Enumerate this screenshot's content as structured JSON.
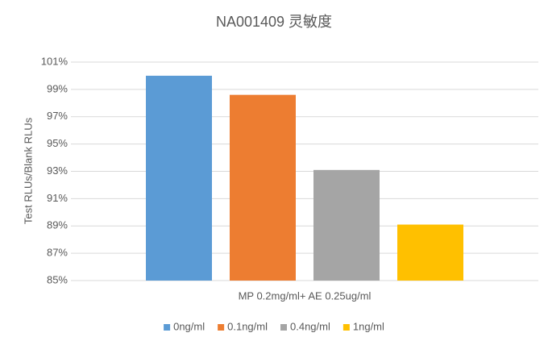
{
  "chart_data": {
    "type": "bar",
    "title": "NA001409 灵敏度",
    "y_label": "Test RLUs/Blank RLUs",
    "categories": [
      "MP 0.2mg/ml+ AE 0.25ug/ml"
    ],
    "series": [
      {
        "name": "0ng/ml",
        "color": "#5b9bd5",
        "values": [
          100
        ]
      },
      {
        "name": "0.1ng/ml",
        "color": "#ed7d31",
        "values": [
          98.6
        ]
      },
      {
        "name": "0.4ng/ml",
        "color": "#a5a5a5",
        "values": [
          93.1
        ]
      },
      {
        "name": "1ng/ml",
        "color": "#ffc000",
        "values": [
          89.1
        ]
      }
    ],
    "ylim": [
      85,
      101
    ],
    "yticks": [
      {
        "value": 85,
        "label": "85%"
      },
      {
        "value": 87,
        "label": "87%"
      },
      {
        "value": 89,
        "label": "89%"
      },
      {
        "value": 91,
        "label": "91%"
      },
      {
        "value": 93,
        "label": "93%"
      },
      {
        "value": 95,
        "label": "95%"
      },
      {
        "value": 97,
        "label": "97%"
      },
      {
        "value": 99,
        "label": "99%"
      },
      {
        "value": 101,
        "label": "101%"
      }
    ],
    "grid": true,
    "legend": "bottom"
  }
}
